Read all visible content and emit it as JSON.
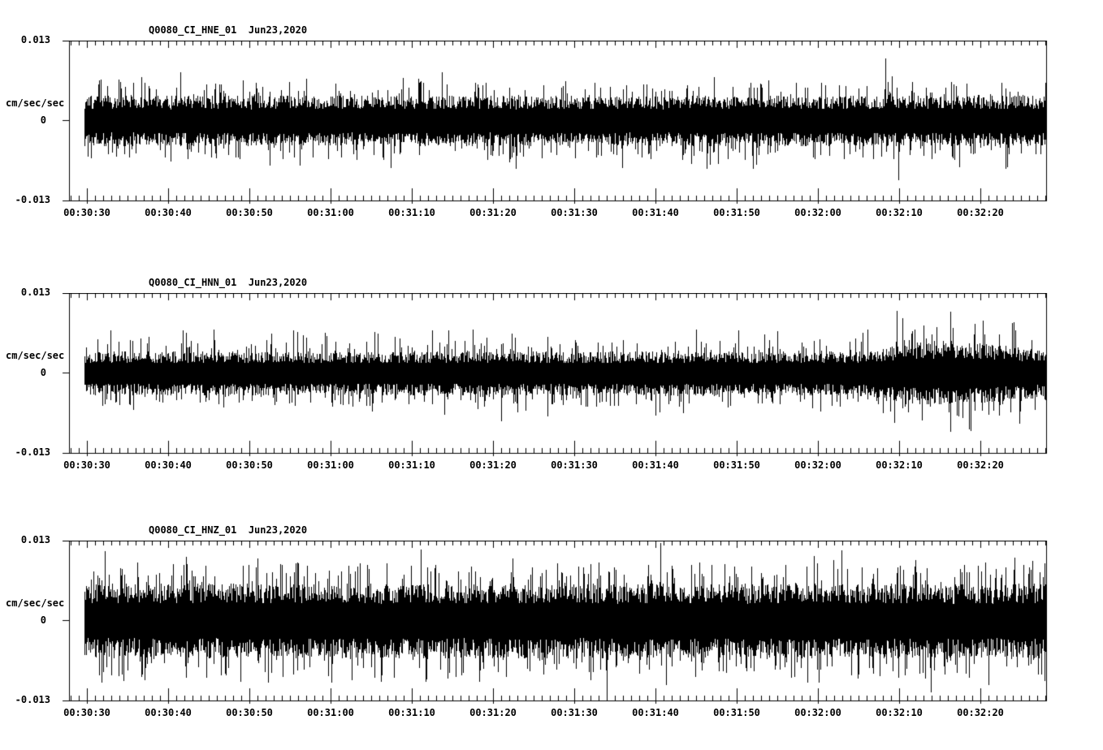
{
  "page": {
    "background": "#ffffff",
    "foreground": "#000000"
  },
  "chart_data": [
    {
      "type": "line",
      "title": "Q0080_CI_HNE_01  Jun23,2020",
      "station_channel": "Q0080_CI_HNE_01",
      "date": "Jun23,2020",
      "ylabel": "cm/sec/sec",
      "ylim": [
        -0.013,
        0.013
      ],
      "y_tick_labels": [
        "0.013",
        "0",
        "-0.013"
      ],
      "x_tick_labels": [
        "00:30:30",
        "00:30:40",
        "00:30:50",
        "00:31:00",
        "00:31:10",
        "00:31:20",
        "00:31:30",
        "00:31:40",
        "00:31:50",
        "00:32:00",
        "00:32:10",
        "00:32:20"
      ],
      "x_major_interval_sec": 10,
      "x_minor_interval_sec": 1,
      "grid": false,
      "line_color": "#000000",
      "waveform": {
        "kind": "continuous-noise",
        "seed": 7,
        "core_amp": 0.0037,
        "spike_amp": 0.008,
        "envelope": [
          [
            0,
            1.0
          ],
          [
            1,
            1.0
          ]
        ],
        "events": [
          [
            0.833,
            0.0102
          ],
          [
            0.846,
            -0.0096
          ]
        ]
      }
    },
    {
      "type": "line",
      "title": "Q0080_CI_HNN_01  Jun23,2020",
      "station_channel": "Q0080_CI_HNN_01",
      "date": "Jun23,2020",
      "ylabel": "cm/sec/sec",
      "ylim": [
        -0.013,
        0.013
      ],
      "y_tick_labels": [
        "0.013",
        "0",
        "-0.013"
      ],
      "x_tick_labels": [
        "00:30:30",
        "00:30:40",
        "00:30:50",
        "00:31:00",
        "00:31:10",
        "00:31:20",
        "00:31:30",
        "00:31:40",
        "00:31:50",
        "00:32:00",
        "00:32:10",
        "00:32:20"
      ],
      "x_major_interval_sec": 10,
      "x_minor_interval_sec": 1,
      "grid": false,
      "line_color": "#000000",
      "waveform": {
        "kind": "continuous-noise",
        "seed": 13,
        "core_amp": 0.0032,
        "spike_amp": 0.0072,
        "envelope": [
          [
            0,
            1.0
          ],
          [
            0.8,
            1.0
          ],
          [
            0.87,
            1.45
          ],
          [
            0.94,
            1.35
          ],
          [
            1,
            1.1
          ]
        ],
        "events": [
          [
            0.433,
            -0.0078
          ],
          [
            0.845,
            0.0102
          ],
          [
            0.9,
            -0.0095
          ]
        ]
      }
    },
    {
      "type": "line",
      "title": "Q0080_CI_HNZ_01  Jun23,2020",
      "station_channel": "Q0080_CI_HNZ_01",
      "date": "Jun23,2020",
      "ylabel": "cm/sec/sec",
      "ylim": [
        -0.013,
        0.013
      ],
      "y_tick_labels": [
        "0.013",
        "0",
        "-0.013"
      ],
      "x_tick_labels": [
        "00:30:30",
        "00:30:40",
        "00:30:50",
        "00:31:00",
        "00:31:10",
        "00:31:20",
        "00:31:30",
        "00:31:40",
        "00:31:50",
        "00:32:00",
        "00:32:10",
        "00:32:20"
      ],
      "x_major_interval_sec": 10,
      "x_minor_interval_sec": 1,
      "grid": false,
      "line_color": "#000000",
      "waveform": {
        "kind": "continuous-noise",
        "seed": 42,
        "core_amp": 0.0055,
        "spike_amp": 0.0105,
        "envelope": [
          [
            0,
            1.0
          ],
          [
            1,
            1.0
          ]
        ],
        "events": [
          [
            0.021,
            0.0114
          ],
          [
            0.35,
            0.0116
          ],
          [
            0.543,
            -0.0127
          ],
          [
            0.599,
            0.0127
          ],
          [
            0.787,
            0.0115
          ],
          [
            0.88,
            -0.0116
          ]
        ]
      }
    }
  ]
}
